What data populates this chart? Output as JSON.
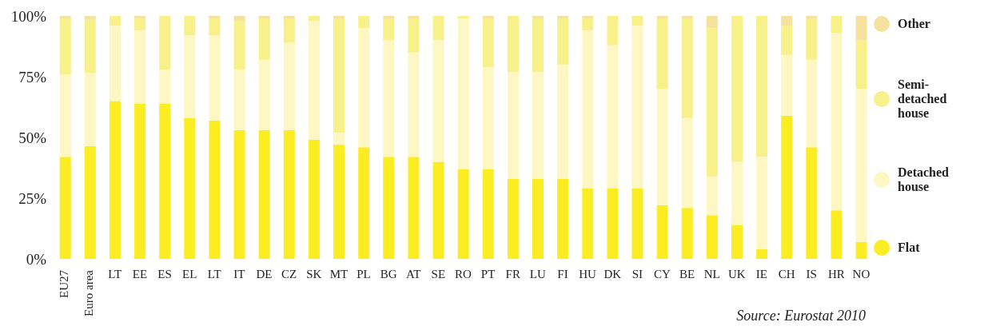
{
  "chart_data": {
    "type": "bar",
    "stacked": true,
    "categories": [
      "EU27",
      "Euro area",
      "LT",
      "EE",
      "ES",
      "EL",
      "LT",
      "IT",
      "DE",
      "CZ",
      "SK",
      "MT",
      "PL",
      "BG",
      "AT",
      "SE",
      "RO",
      "PT",
      "FR",
      "LU",
      "FI",
      "HU",
      "DK",
      "SI",
      "CY",
      "BE",
      "NL",
      "UK",
      "IE",
      "CH",
      "IS",
      "HR",
      "NO"
    ],
    "series": [
      {
        "name": "Flat",
        "color": "#fcec22",
        "values": [
          42,
          46.5,
          65,
          64,
          64,
          58,
          57,
          53,
          53,
          53,
          49,
          47,
          46,
          42,
          42,
          40,
          37,
          37,
          33,
          33,
          33,
          29,
          29,
          29,
          22,
          21,
          18,
          14,
          4,
          59,
          46,
          20,
          7
        ]
      },
      {
        "name": "Detached house",
        "color": "#fdf7c4",
        "values": [
          34,
          30,
          31,
          30,
          14,
          34,
          35,
          25,
          29,
          36,
          49,
          5,
          49,
          48,
          43,
          50,
          62,
          42,
          44,
          44,
          47,
          65,
          59,
          67,
          48,
          37,
          16,
          26,
          38,
          25,
          36,
          73,
          63
        ]
      },
      {
        "name": "Semi-detached house",
        "color": "#f8f088",
        "values": [
          23,
          22,
          4,
          5,
          22,
          8,
          7,
          20,
          17,
          10,
          2,
          47,
          5,
          9,
          14,
          10,
          1,
          20,
          23,
          22,
          19,
          5,
          12,
          4,
          29,
          41,
          61,
          60,
          58,
          12,
          17,
          7,
          20
        ]
      },
      {
        "name": "Other",
        "color": "#f4e29e",
        "values": [
          1,
          1.5,
          0,
          1,
          0,
          0,
          1,
          2,
          1,
          1,
          0,
          1,
          0,
          1,
          1,
          0,
          0,
          1,
          0,
          1,
          1,
          1,
          0,
          0,
          1,
          1,
          5,
          0,
          0,
          4,
          1,
          0,
          10
        ]
      }
    ],
    "ylim": [
      0,
      100
    ],
    "yticks": [
      {
        "value": 0,
        "label": "0%"
      },
      {
        "value": 25,
        "label": "25%"
      },
      {
        "value": 50,
        "label": "50%"
      },
      {
        "value": 75,
        "label": "75%"
      },
      {
        "value": 100,
        "label": "100%"
      }
    ],
    "grid": false,
    "legend": "right",
    "annotations": [
      "Source: Eurostat 2010"
    ]
  }
}
